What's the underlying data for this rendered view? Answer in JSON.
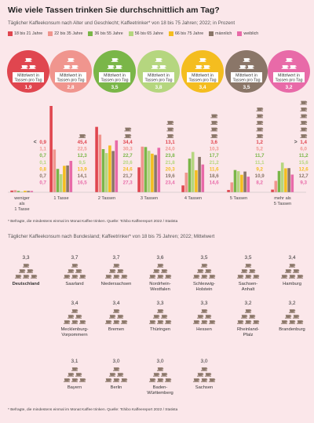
{
  "title": "Wie viele Tassen trinken Sie durchschnittlich am Tag?",
  "subtitle": "Täglicher Kaffeekonsum nach Alter und Geschlecht; Kaffeetrinker* von 18 bis 75 Jahren; 2022; in Prozent",
  "legend": [
    {
      "label": "18 bis 21 Jahre",
      "color": "#e0464f"
    },
    {
      "label": "22 bis 35 Jahre",
      "color": "#f0958e"
    },
    {
      "label": "36 bis 55 Jahre",
      "color": "#7ab648"
    },
    {
      "label": "56 bis 65 Jahre",
      "color": "#b5d67f"
    },
    {
      "label": "66 bis 75 Jahre",
      "color": "#f4bd1f"
    },
    {
      "label": "männlich",
      "color": "#8a7668"
    },
    {
      "label": "weiblich",
      "color": "#e86aa8"
    }
  ],
  "circle_caption": "Mittelwert in Tassen pro Tag",
  "circle_values": [
    "1,9",
    "2,8",
    "3,5",
    "3,8",
    "3,4",
    "3,5",
    "3,2"
  ],
  "chart_data": [
    {
      "type": "bar",
      "title": "Wie viele Tassen trinken Sie durchschnittlich am Tag?",
      "categories": [
        "weniger als 1 Tasse",
        "1 Tasse",
        "2 Tassen",
        "3 Tassen",
        "4 Tassen",
        "5 Tassen",
        "mehr als 5 Tassen"
      ],
      "category_lines": [
        [
          "weniger",
          "als",
          "1 Tasse"
        ],
        [
          "1 Tasse"
        ],
        [
          "2 Tassen"
        ],
        [
          "3 Tassen"
        ],
        [
          "4 Tassen"
        ],
        [
          "5 Tassen"
        ],
        [
          "mehr als",
          "5 Tassen"
        ]
      ],
      "series": [
        {
          "name": "18 bis 21 Jahre",
          "values": [
            0.9,
            45.4,
            34.4,
            13.1,
            3.6,
            1.2,
            1.4
          ]
        },
        {
          "name": "22 bis 35 Jahre",
          "values": [
            1.1,
            22.5,
            30.3,
            24.0,
            10.3,
            5.2,
            6.0
          ]
        },
        {
          "name": "36 bis 55 Jahre",
          "values": [
            0.7,
            12.3,
            22.7,
            23.8,
            17.7,
            11.7,
            11.2
          ]
        },
        {
          "name": "56 bis 65 Jahre",
          "values": [
            0.1,
            9.5,
            20.6,
            21.8,
            21.2,
            11.1,
            15.6
          ]
        },
        {
          "name": "66 bis 75 Jahre",
          "values": [
            0.8,
            13.9,
            24.6,
            20.3,
            11.6,
            9.2,
            12.6
          ]
        },
        {
          "name": "männlich",
          "values": [
            0.7,
            14.1,
            21.7,
            19.6,
            18.6,
            10.9,
            12.7
          ]
        },
        {
          "name": "weiblich",
          "values": [
            0.7,
            16.5,
            27.3,
            23.4,
            14.6,
            8.2,
            9.3
          ]
        }
      ],
      "value_labels": [
        [
          "0,9",
          "1,1",
          "0,7",
          "0,1",
          "0,8",
          "0,7",
          "0,7"
        ],
        [
          "45,4",
          "22,5",
          "12,3",
          "9,5",
          "13,9",
          "14,1",
          "16,5"
        ],
        [
          "34,4",
          "30,3",
          "22,7",
          "20,6",
          "24,6",
          "21,7",
          "27,3"
        ],
        [
          "13,1",
          "24,0",
          "23,8",
          "21,8",
          "20,3",
          "19,6",
          "23,4"
        ],
        [
          "3,6",
          "10,3",
          "17,7",
          "21,2",
          "11,6",
          "18,6",
          "14,6"
        ],
        [
          "1,2",
          "5,2",
          "11,7",
          "11,1",
          "9,2",
          "10,9",
          "8,2"
        ],
        [
          "1,4",
          "6,0",
          "11,2",
          "15,6",
          "12,6",
          "12,7",
          "9,3"
        ]
      ],
      "markers": [
        "<",
        "",
        "",
        "",
        "",
        "",
        ">"
      ],
      "cups_per_category": [
        0,
        1,
        2,
        3,
        4,
        5,
        6
      ],
      "ylim": [
        0,
        50
      ]
    },
    {
      "type": "table",
      "title": "Täglicher Kaffeekonsum nach Bundesland; Kaffeetrinker* von 18 bis 75 Jahren; 2022; Mittelwert",
      "categories": [
        "Deutschland",
        "Saarland",
        "Niedersachsen",
        "Nordrhein-Westfalen",
        "Schleswig-Holstein",
        "Sachsen-Anhalt",
        "Hamburg",
        "Mecklenburg-Vorpommern",
        "Bremen",
        "Thüringen",
        "Hessen",
        "Rheinland-Pfalz",
        "Brandenburg",
        "Bayern",
        "Berlin",
        "Baden-Württemberg",
        "Sachsen"
      ],
      "values": [
        3.3,
        3.7,
        3.7,
        3.6,
        3.5,
        3.5,
        3.4,
        3.4,
        3.4,
        3.3,
        3.3,
        3.2,
        3.2,
        3.1,
        3.0,
        3.0,
        3.0
      ]
    }
  ],
  "states": [
    {
      "value": "3,3",
      "lines": [
        "Deutschland"
      ],
      "bold": true
    },
    {
      "value": "3,7",
      "lines": [
        "Saarland"
      ]
    },
    {
      "value": "3,7",
      "lines": [
        "Niedersachsen"
      ]
    },
    {
      "value": "3,6",
      "lines": [
        "Nordrhein-",
        "Westfalen"
      ]
    },
    {
      "value": "3,5",
      "lines": [
        "Schleswig-",
        "Holstein"
      ]
    },
    {
      "value": "3,5",
      "lines": [
        "Sachsen-",
        "Anhalt"
      ]
    },
    {
      "value": "3,4",
      "lines": [
        "Hamburg"
      ]
    },
    {
      "value": "3,4",
      "lines": [
        "Mecklenburg-",
        "Vorpommern"
      ]
    },
    {
      "value": "3,4",
      "lines": [
        "Bremen"
      ]
    },
    {
      "value": "3,3",
      "lines": [
        "Thüringen"
      ]
    },
    {
      "value": "3,3",
      "lines": [
        "Hessen"
      ]
    },
    {
      "value": "3,2",
      "lines": [
        "Rheinland-",
        "Pfalz"
      ]
    },
    {
      "value": "3,2",
      "lines": [
        "Brandenburg"
      ]
    },
    {
      "value": "3,1",
      "lines": [
        "Bayern"
      ]
    },
    {
      "value": "3,0",
      "lines": [
        "Berlin"
      ]
    },
    {
      "value": "3,0",
      "lines": [
        "Baden-",
        "Württemberg"
      ]
    },
    {
      "value": "3,0",
      "lines": [
        "Sachsen"
      ]
    }
  ],
  "note1": "* Befragte, die mindestens einmal im Monat Kaffee trinken. Quelle: Tchibo Kaffeereport 2022 / Statista",
  "section2_title": "Täglicher Kaffeekonsum nach Bundesland; Kaffeetrinker* von 18 bis 75 Jahren; 2022; Mittelwert",
  "note2": "* Befragte, die mindestens einmal im Monat Kaffee trinken. Quelle: Tchibo Kaffeereport 2022 / Statista"
}
